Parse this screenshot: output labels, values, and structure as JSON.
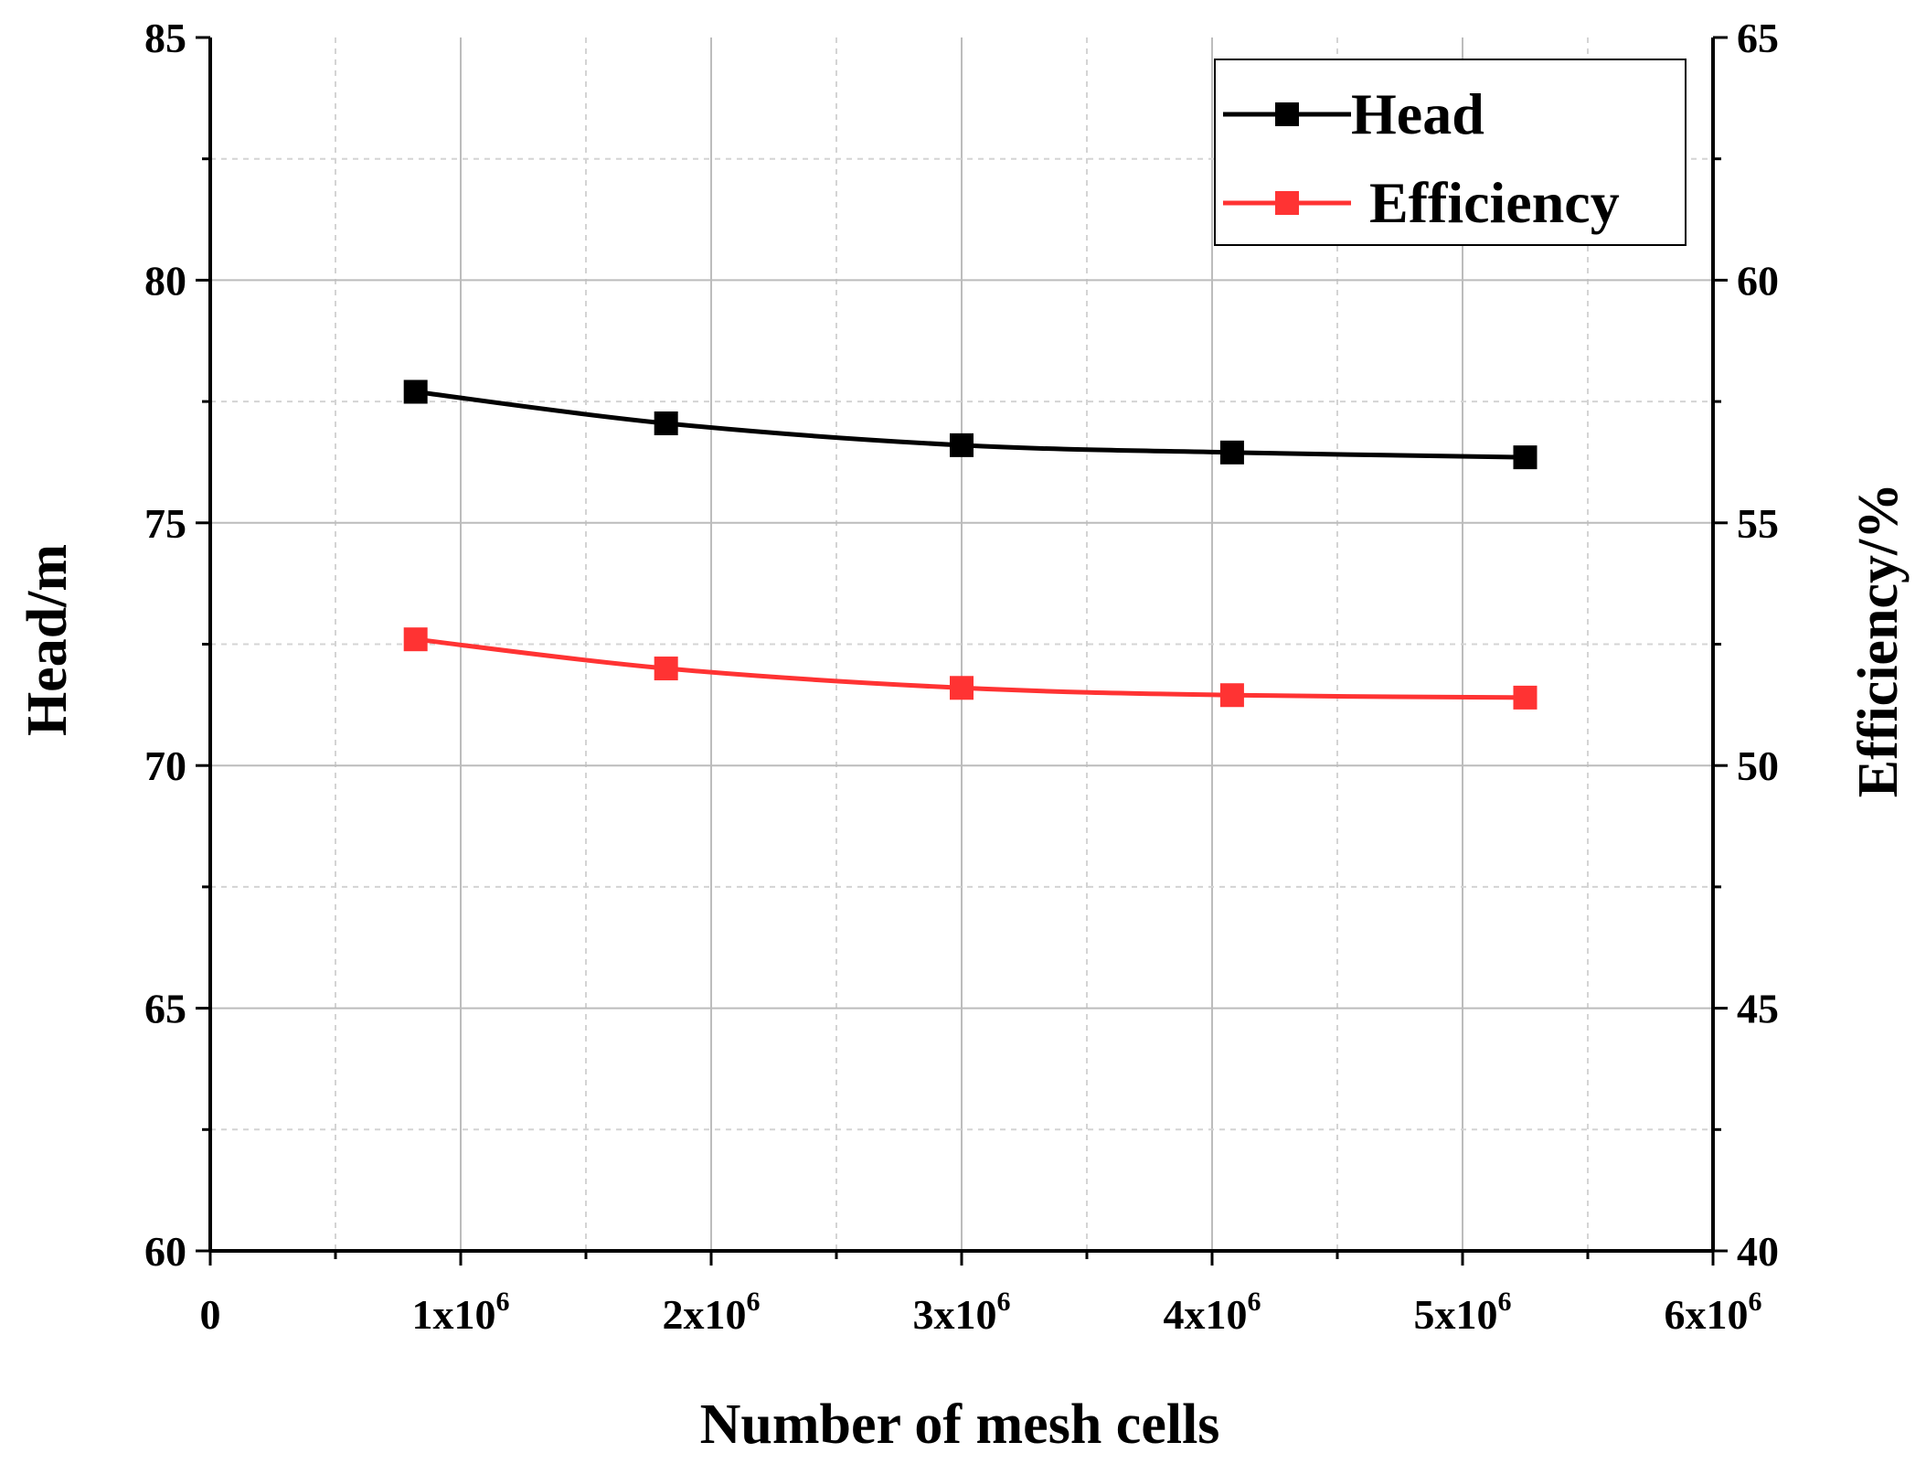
{
  "chart_data": {
    "type": "line",
    "xlabel": "Number of mesh cells",
    "ylabel": "Head/m",
    "y2label": "Efficiency/%",
    "xlim": [
      0,
      6000000
    ],
    "ylim": [
      60,
      85
    ],
    "y2lim": [
      40,
      65
    ],
    "x_ticks": [
      {
        "value": 0,
        "base": "0",
        "exp": ""
      },
      {
        "value": 1000000,
        "base": "1x10",
        "exp": "6"
      },
      {
        "value": 2000000,
        "base": "2x10",
        "exp": "6"
      },
      {
        "value": 3000000,
        "base": "3x10",
        "exp": "6"
      },
      {
        "value": 4000000,
        "base": "4x10",
        "exp": "6"
      },
      {
        "value": 5000000,
        "base": "5x10",
        "exp": "6"
      },
      {
        "value": 6000000,
        "base": "6x10",
        "exp": "6"
      }
    ],
    "y_ticks": [
      "60",
      "65",
      "70",
      "75",
      "80",
      "85"
    ],
    "y2_ticks": [
      "40",
      "45",
      "50",
      "55",
      "60",
      "65"
    ],
    "grid": true,
    "legend_position": "top-right",
    "series": [
      {
        "name": "Head",
        "axis": "left",
        "color": "#000000",
        "x": [
          820000,
          1820000,
          3000000,
          4080000,
          5250000
        ],
        "y": [
          77.7,
          77.05,
          76.6,
          76.45,
          76.35
        ]
      },
      {
        "name": "Efficiency",
        "axis": "right",
        "color": "#ff3333",
        "x": [
          820000,
          1820000,
          3000000,
          4080000,
          5250000
        ],
        "y": [
          52.6,
          52.0,
          51.6,
          51.45,
          51.4
        ]
      }
    ]
  }
}
